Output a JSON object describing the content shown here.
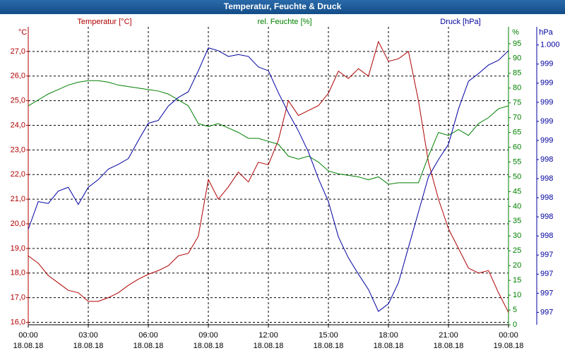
{
  "chart_data": {
    "type": "line",
    "title": "Temperatur, Feuchte & Druck",
    "x": [
      0,
      0.5,
      1,
      1.5,
      2,
      2.5,
      3,
      3.5,
      4,
      4.5,
      5,
      5.5,
      6,
      6.5,
      7,
      7.5,
      8,
      8.5,
      9,
      9.5,
      10,
      10.5,
      11,
      11.5,
      12,
      12.5,
      13,
      13.5,
      14,
      14.5,
      15,
      15.5,
      16,
      16.5,
      17,
      17.5,
      18,
      18.5,
      19,
      19.5,
      20,
      20.5,
      21,
      21.5,
      22,
      22.5,
      23,
      23.5,
      24
    ],
    "xlim": [
      0,
      24
    ],
    "xticks": [
      {
        "value": 0,
        "label": "00:00"
      },
      {
        "value": 3,
        "label": "03:00"
      },
      {
        "value": 6,
        "label": "06:00"
      },
      {
        "value": 9,
        "label": "09:00"
      },
      {
        "value": 12,
        "label": "12:00"
      },
      {
        "value": 15,
        "label": "15:00"
      },
      {
        "value": 18,
        "label": "18:00"
      },
      {
        "value": 21,
        "label": "21:00"
      },
      {
        "value": 24,
        "label": "00:00"
      }
    ],
    "xtick_dates": [
      "18.08.18",
      "18.08.18",
      "18.08.18",
      "18.08.18",
      "18.08.18",
      "18.08.18",
      "18.08.18",
      "18.08.18",
      "19.08.18"
    ],
    "ylabel": "°C",
    "y2label": "%",
    "y3label": "hPa",
    "ylim": [
      15.9,
      28.0
    ],
    "yticks": [
      {
        "value": 16,
        "label": "16,0"
      },
      {
        "value": 17,
        "label": "17,0"
      },
      {
        "value": 18,
        "label": "18,0"
      },
      {
        "value": 19,
        "label": "19,0"
      },
      {
        "value": 20,
        "label": "20,0"
      },
      {
        "value": 21,
        "label": "21,0"
      },
      {
        "value": 22,
        "label": "22,0"
      },
      {
        "value": 23,
        "label": "23,0"
      },
      {
        "value": 24,
        "label": "24,0"
      },
      {
        "value": 25,
        "label": "25,0"
      },
      {
        "value": 26,
        "label": "26,0"
      },
      {
        "value": 27,
        "label": "27,0"
      }
    ],
    "y2lim": [
      0,
      100.7
    ],
    "y2ticks": [
      0,
      5,
      10,
      15,
      20,
      25,
      30,
      35,
      40,
      45,
      50,
      55,
      60,
      65,
      70,
      75,
      80,
      85,
      90,
      95
    ],
    "y3lim": [
      996.67,
      999.79
    ],
    "y3ticks": [
      {
        "value": 996.8,
        "label": "997"
      },
      {
        "value": 997.0,
        "label": "997"
      },
      {
        "value": 997.2,
        "label": "997"
      },
      {
        "value": 997.4,
        "label": "997"
      },
      {
        "value": 997.6,
        "label": "998"
      },
      {
        "value": 997.8,
        "label": "998"
      },
      {
        "value": 998.0,
        "label": "998"
      },
      {
        "value": 998.2,
        "label": "998"
      },
      {
        "value": 998.4,
        "label": "998"
      },
      {
        "value": 998.6,
        "label": "999"
      },
      {
        "value": 998.8,
        "label": "999"
      },
      {
        "value": 999.0,
        "label": "999"
      },
      {
        "value": 999.2,
        "label": "999"
      },
      {
        "value": 999.4,
        "label": "999"
      },
      {
        "value": 999.6,
        "label": "1.000"
      }
    ],
    "grid": true,
    "series": [
      {
        "name": "Temperatur [°C]",
        "color": "#b00000",
        "axis": "y",
        "values": [
          18.7,
          18.4,
          17.9,
          17.6,
          17.3,
          17.2,
          16.85,
          16.85,
          17.0,
          17.2,
          17.5,
          17.75,
          17.95,
          18.1,
          18.3,
          18.7,
          18.8,
          19.5,
          21.8,
          21.0,
          21.5,
          22.1,
          21.7,
          22.5,
          22.4,
          23.4,
          25.0,
          24.4,
          24.6,
          24.8,
          25.3,
          26.2,
          25.9,
          26.3,
          26.0,
          27.4,
          26.6,
          26.7,
          27.0,
          25.0,
          22.5,
          21.0,
          19.8,
          19.0,
          18.2,
          18.0,
          18.1,
          17.2,
          16.4
        ]
      },
      {
        "name": "rel. Feuchte [%]",
        "color": "#008000",
        "axis": "y2",
        "values": [
          74,
          76,
          78,
          79.5,
          81,
          82,
          82.5,
          82.5,
          82,
          81,
          80.5,
          80,
          79.5,
          79,
          78,
          76,
          74,
          68,
          67,
          68,
          66.5,
          65,
          63,
          63,
          62,
          61,
          57,
          56,
          57,
          55,
          52,
          51,
          50.5,
          50,
          49,
          50,
          47.5,
          48,
          48,
          48,
          57,
          65,
          64,
          66,
          64,
          68,
          70,
          73,
          74
        ]
      },
      {
        "name": "Druck [hPa]",
        "color": "#0000a0",
        "axis": "y3",
        "values": [
          997.67,
          997.96,
          997.94,
          998.07,
          998.11,
          997.93,
          998.11,
          998.19,
          998.3,
          998.35,
          998.41,
          998.6,
          998.78,
          998.81,
          998.96,
          999.05,
          999.11,
          999.33,
          999.57,
          999.54,
          999.48,
          999.5,
          999.48,
          999.37,
          999.33,
          999.1,
          998.89,
          998.7,
          998.48,
          998.2,
          997.96,
          997.59,
          997.37,
          997.2,
          997.04,
          996.81,
          996.89,
          997.11,
          997.48,
          997.85,
          998.22,
          998.4,
          998.56,
          998.93,
          999.22,
          999.3,
          999.39,
          999.44,
          999.54
        ]
      }
    ]
  }
}
